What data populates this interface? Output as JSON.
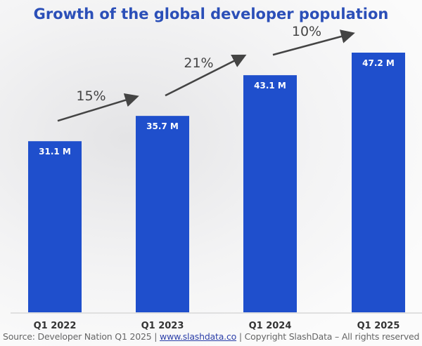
{
  "chart_data": {
    "type": "bar",
    "title": "Growth of the global developer population",
    "categories": [
      "Q1 2022",
      "Q1 2023",
      "Q1 2024",
      "Q1 2025"
    ],
    "values": [
      31.1,
      35.7,
      43.1,
      47.2
    ],
    "data_labels": [
      "31.1 M",
      "35.7 M",
      "43.1 M",
      "47.2 M"
    ],
    "growth_annotations": [
      "15%",
      "21%",
      "10%"
    ],
    "ylim": [
      0,
      47.2
    ],
    "grid": false,
    "bar_color": "#1f4fcc",
    "title_color": "#2b4fb8"
  },
  "source": {
    "prefix": "Source: Developer Nation Q1 2025 | ",
    "link": "www.slashdata.co",
    "suffix": " | Copyright SlashData – All rights reserved"
  }
}
